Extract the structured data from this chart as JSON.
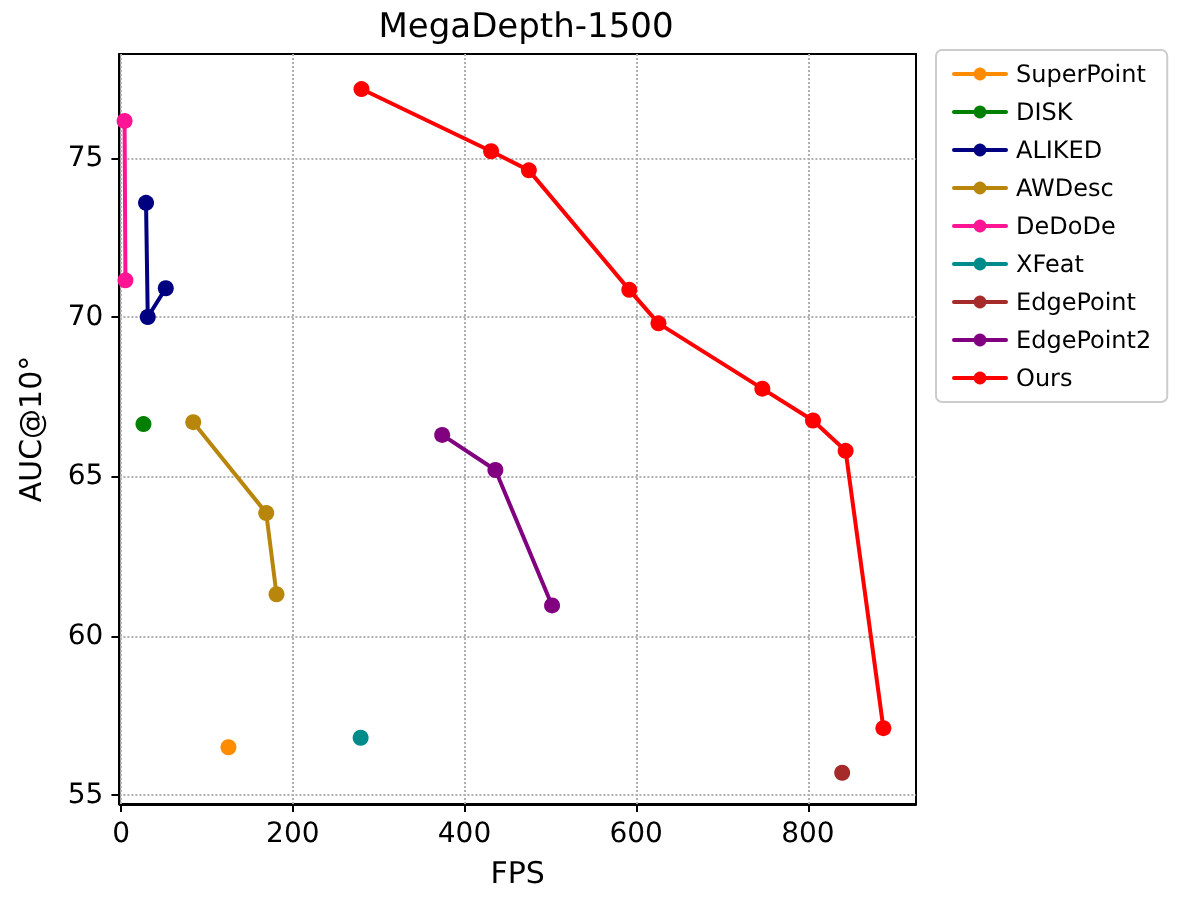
{
  "chart_data": {
    "type": "line",
    "title": "MegaDepth-1500",
    "xlabel": "FPS",
    "ylabel": "AUC@10°",
    "xlim": [
      -2,
      926
    ],
    "ylim": [
      54.72,
      78.25
    ],
    "xticks": [
      0,
      200,
      400,
      600,
      800
    ],
    "yticks": [
      55,
      60,
      65,
      70,
      75
    ],
    "grid": true,
    "legend": "top right",
    "marker": "circle",
    "line_style": "solid",
    "series": [
      {
        "name": "SuperPoint",
        "color": "#ff8c00",
        "x": [
          125
        ],
        "values": [
          56.5
        ]
      },
      {
        "name": "DISK",
        "color": "#008000",
        "x": [
          26
        ],
        "values": [
          66.64
        ]
      },
      {
        "name": "ALIKED",
        "color": "#000080",
        "x": [
          29,
          31,
          52
        ],
        "values": [
          73.58,
          70.0,
          70.9
        ]
      },
      {
        "name": "AWDesc",
        "color": "#b8860b",
        "x": [
          84,
          169,
          181
        ],
        "values": [
          66.7,
          63.85,
          61.3
        ]
      },
      {
        "name": "DeDoDe",
        "color": "#ff1493",
        "x": [
          4,
          5
        ],
        "values": [
          76.15,
          71.15
        ]
      },
      {
        "name": "XFeat",
        "color": "#008b8b",
        "x": [
          279
        ],
        "values": [
          56.8
        ]
      },
      {
        "name": "EdgePoint",
        "color": "#a52a2a",
        "x": [
          840
        ],
        "values": [
          55.7
        ]
      },
      {
        "name": "EdgePoint2",
        "color": "#800080",
        "x": [
          374,
          436,
          502
        ],
        "values": [
          66.3,
          65.2,
          60.95
        ]
      },
      {
        "name": "Ours",
        "color": "#ff0000",
        "x": [
          280,
          431,
          475,
          592,
          626,
          747,
          806,
          844,
          888
        ],
        "values": [
          77.15,
          75.2,
          74.6,
          70.85,
          69.8,
          67.75,
          66.75,
          65.8,
          57.1
        ]
      }
    ]
  }
}
